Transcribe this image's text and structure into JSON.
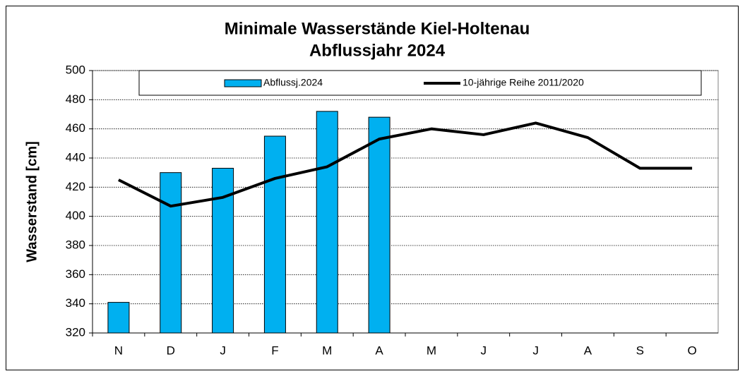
{
  "chart_data": {
    "type": "bar-line",
    "title": "Minimale Wasserstände Kiel-Holtenau",
    "subtitle": "Abflussjahr 2024",
    "y_label": "Wasserstand [cm]",
    "categories": [
      "N",
      "D",
      "J",
      "F",
      "M",
      "A",
      "M",
      "J",
      "J",
      "A",
      "S",
      "O"
    ],
    "series": [
      {
        "name": "Abflussj.2024",
        "type": "bar",
        "color": "#00b0f0",
        "values": [
          341,
          430,
          433,
          455,
          472,
          468,
          null,
          null,
          null,
          null,
          null,
          null
        ]
      },
      {
        "name": "10-jährige Reihe  2011/2020",
        "type": "line",
        "color": "#000000",
        "values": [
          425,
          407,
          413,
          426,
          434,
          453,
          460,
          456,
          464,
          454,
          433,
          433
        ]
      }
    ],
    "ylim": [
      320,
      500
    ],
    "yticks": [
      320,
      340,
      360,
      380,
      400,
      420,
      440,
      460,
      480,
      500
    ],
    "grid": true,
    "legend": "top"
  }
}
